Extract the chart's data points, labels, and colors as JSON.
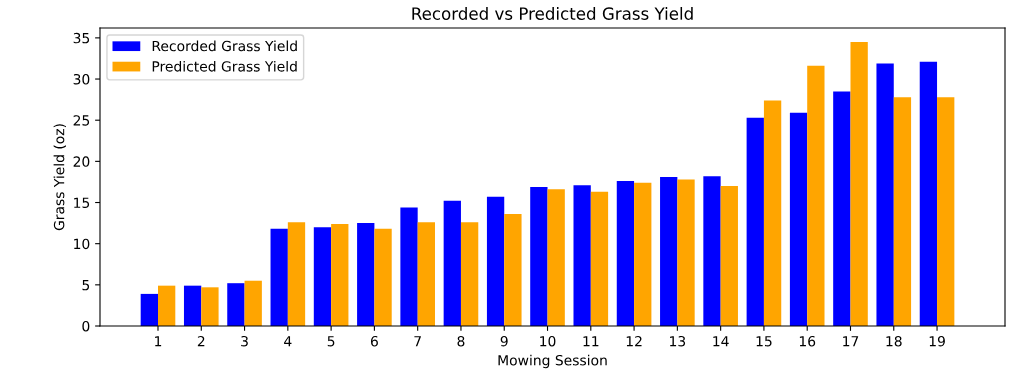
{
  "chart_data": {
    "type": "bar",
    "title": "Recorded vs Predicted Grass Yield",
    "xlabel": "Mowing Session",
    "ylabel": "Grass Yield (oz)",
    "categories": [
      "1",
      "2",
      "3",
      "4",
      "5",
      "6",
      "7",
      "8",
      "9",
      "10",
      "11",
      "12",
      "13",
      "14",
      "15",
      "16",
      "17",
      "18",
      "19"
    ],
    "series": [
      {
        "name": "Recorded Grass Yield",
        "color": "#0000ff",
        "values": [
          3.9,
          4.9,
          5.2,
          11.8,
          12.0,
          12.5,
          14.4,
          15.2,
          15.7,
          16.9,
          17.1,
          17.6,
          18.1,
          18.2,
          25.3,
          25.9,
          28.5,
          31.9,
          32.1
        ]
      },
      {
        "name": "Predicted Grass Yield",
        "color": "#ffa500",
        "values": [
          4.9,
          4.7,
          5.5,
          12.6,
          12.4,
          11.8,
          12.6,
          12.6,
          13.6,
          16.6,
          16.3,
          17.4,
          17.8,
          17.0,
          27.4,
          31.6,
          34.5,
          27.8,
          27.8
        ]
      }
    ],
    "ylim": [
      0,
      36.2
    ],
    "yticks": [
      0,
      5,
      10,
      15,
      20,
      25,
      30,
      35
    ],
    "grid": false,
    "legend": "top left"
  }
}
